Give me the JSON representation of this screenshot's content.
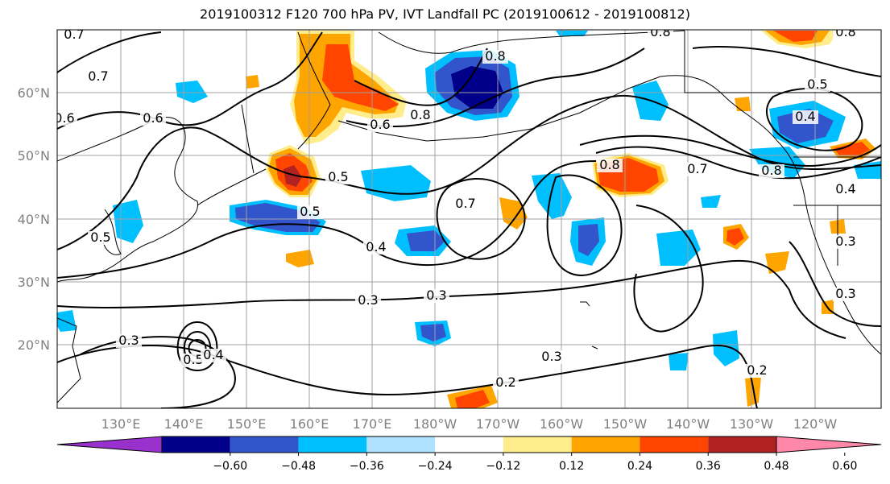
{
  "title": "2019100312 F120 700 hPa PV, IVT Landfall PC (2019100612 - 2019100812)",
  "lat_labels": [
    "60°N",
    "50°N",
    "40°N",
    "30°N",
    "20°N"
  ],
  "lon_labels": [
    "130°E",
    "140°E",
    "150°E",
    "160°E",
    "170°E",
    "180°W",
    "170°W",
    "160°W",
    "150°W",
    "140°W",
    "130°W",
    "120°W"
  ],
  "contour_labels": [
    "0.7",
    "0.7",
    "0.8",
    "0.8",
    "0.6",
    "0.6",
    "0.6",
    "0.5",
    "0.5",
    "0.5",
    "0.4",
    "0.4",
    "0.7",
    "0.7",
    "0.8",
    "0.8",
    "0.5",
    "0.4",
    "0.3",
    "0.3",
    "0.3",
    "0.3",
    "0.2",
    "0.5",
    "0.4",
    "0.2",
    "0.3",
    "0.3",
    "0.8",
    "0.8"
  ],
  "colorbar": {
    "ticks": [
      "−0.60",
      "−0.48",
      "−0.36",
      "−0.24",
      "−0.12",
      "0.12",
      "0.24",
      "0.36",
      "0.48",
      "0.60"
    ],
    "colors": [
      "#9932cc",
      "#00008b",
      "#3355cc",
      "#00bfff",
      "#b0e2ff",
      "#ffffff",
      "#ffec8b",
      "#ffa500",
      "#ff4500",
      "#b22222",
      "#ff88aa"
    ]
  },
  "fill_colors": {
    "neg1": "#b0e2ff",
    "neg2": "#00bfff",
    "neg3": "#3355cc",
    "neg4": "#00008b",
    "pos1": "#ffec8b",
    "pos2": "#ffa500",
    "pos3": "#ff4500",
    "pos4": "#b22222"
  }
}
